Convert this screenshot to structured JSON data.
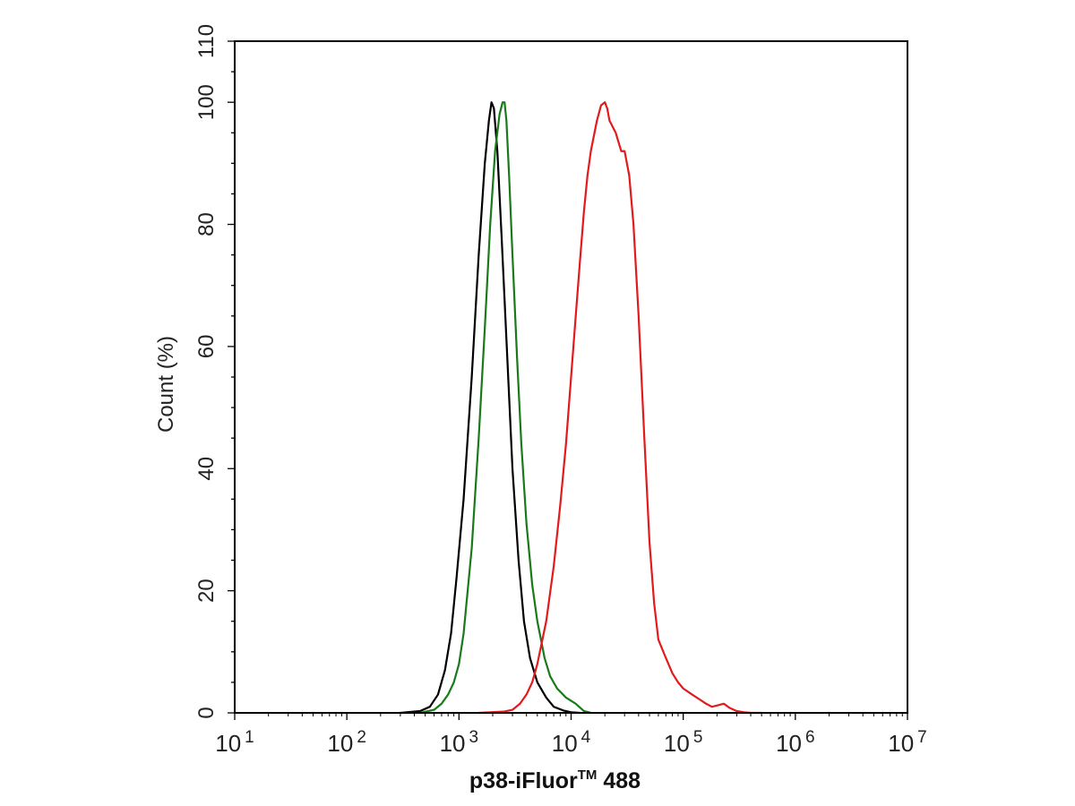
{
  "chart_data": {
    "type": "line",
    "title": "",
    "xlabel": "p38-iFluor",
    "xlabel_superscript": "TM",
    "xlabel_suffix": " 488",
    "ylabel": "Count  (%)",
    "x_scale": "log",
    "xlim": [
      10,
      10000000
    ],
    "ylim": [
      0,
      110
    ],
    "y_ticks": [
      0,
      20,
      40,
      60,
      80,
      100,
      110
    ],
    "y_tick_labels": [
      "0",
      "20",
      "40",
      "60",
      "80",
      "100",
      "110"
    ],
    "x_ticks": [
      10,
      100,
      1000,
      10000,
      100000,
      1000000,
      10000000
    ],
    "x_tick_labels": [
      {
        "base": "10",
        "exp": "1"
      },
      {
        "base": "10",
        "exp": "2"
      },
      {
        "base": "10",
        "exp": "3"
      },
      {
        "base": "10",
        "exp": "4"
      },
      {
        "base": "10",
        "exp": "5"
      },
      {
        "base": "10",
        "exp": "6"
      },
      {
        "base": "10",
        "exp": "7"
      }
    ],
    "grid": false,
    "legend": "none",
    "series": [
      {
        "color": "#000000",
        "x": [
          300,
          450,
          550,
          650,
          750,
          850,
          950,
          1100,
          1300,
          1500,
          1700,
          1850,
          1950,
          2050,
          2200,
          2400,
          2700,
          3000,
          3400,
          3800,
          4300,
          5000,
          6000,
          7000,
          8500,
          10000,
          12000
        ],
        "y": [
          0,
          0.3,
          1,
          3,
          7,
          13,
          22,
          35,
          55,
          75,
          90,
          97,
          100,
          99,
          92,
          78,
          58,
          40,
          25,
          15,
          9,
          5,
          2.5,
          1,
          0.4,
          0.1,
          0
        ]
      },
      {
        "color": "#1a7a1a",
        "x": [
          450,
          600,
          700,
          800,
          900,
          1000,
          1100,
          1300,
          1500,
          1700,
          1900,
          2100,
          2300,
          2450,
          2550,
          2650,
          2800,
          3000,
          3300,
          3600,
          4000,
          4500,
          5000,
          5800,
          6500,
          7500,
          9000,
          11000,
          13000,
          15000
        ],
        "y": [
          0,
          0.5,
          1.5,
          3,
          5,
          8,
          13,
          27,
          45,
          63,
          80,
          92,
          98,
          100,
          100,
          97,
          88,
          75,
          58,
          44,
          31,
          21,
          15,
          9,
          6,
          4,
          2.5,
          1.5,
          0.3,
          0
        ]
      },
      {
        "color": "#e31a1c",
        "x": [
          1500,
          2500,
          3000,
          3500,
          4000,
          4500,
          5000,
          6000,
          7000,
          8000,
          9000,
          10000,
          11000,
          12000,
          13000,
          14000,
          15000,
          17000,
          18500,
          20000,
          21000,
          22000,
          25000,
          28000,
          30000,
          33000,
          36000,
          40000,
          45000,
          50000,
          55000,
          60000,
          70000,
          80000,
          90000,
          100000,
          120000,
          140000,
          160000,
          180000,
          200000,
          230000,
          260000,
          300000,
          350000,
          400000,
          500000
        ],
        "y": [
          0,
          0.2,
          0.5,
          1.5,
          3,
          5,
          8,
          15,
          24,
          34,
          44,
          55,
          65,
          74,
          82,
          88,
          92,
          97,
          99.5,
          100,
          99,
          97,
          95,
          92,
          92,
          88,
          80,
          65,
          45,
          28,
          18,
          12,
          9,
          6.5,
          5,
          4,
          3,
          2.2,
          1.5,
          1,
          1.2,
          1.5,
          0.8,
          0.3,
          0.1,
          0,
          0
        ]
      }
    ]
  }
}
